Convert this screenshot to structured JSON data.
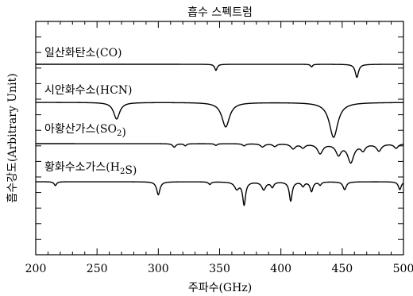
{
  "chart_data": {
    "type": "line",
    "title": "흡수 스펙트럼",
    "xlabel": "주파수(GHz)",
    "ylabel": "흡수강도(Arbitrary Unit)",
    "xlim": [
      200,
      500
    ],
    "xticks": [
      "200",
      "250",
      "300",
      "350",
      "400",
      "450",
      "500"
    ],
    "grid": false,
    "series": [
      {
        "name": "일산화탄소(CO)",
        "label_parts": [
          {
            "t": "일산화탄소(CO)"
          }
        ],
        "baseline": 0.0,
        "peaks": [
          {
            "x": 347,
            "depth": 0.35,
            "width": 1.2
          },
          {
            "x": 425,
            "depth": 0.15,
            "width": 1.0
          },
          {
            "x": 462,
            "depth": 0.75,
            "width": 1.6
          }
        ]
      },
      {
        "name": "시안화수소(HCN)",
        "label_parts": [
          {
            "t": "시안화수소(HCN)"
          }
        ],
        "baseline": 0.0,
        "peaks": [
          {
            "x": 266,
            "depth": 0.95,
            "width": 3.0
          },
          {
            "x": 355,
            "depth": 1.4,
            "width": 3.8
          },
          {
            "x": 443,
            "depth": 2.0,
            "width": 4.2
          }
        ]
      },
      {
        "name": "아황산가스(SO2)",
        "label_parts": [
          {
            "t": "아황산가스(SO"
          },
          {
            "t": "2",
            "sub": true
          },
          {
            "t": ")"
          }
        ],
        "baseline": 0.0,
        "peaks": [
          {
            "x": 313,
            "depth": 0.2,
            "width": 1.5
          },
          {
            "x": 322,
            "depth": 0.12,
            "width": 1.2
          },
          {
            "x": 347,
            "depth": 0.1,
            "width": 1.2
          },
          {
            "x": 370,
            "depth": 0.12,
            "width": 1.5
          },
          {
            "x": 385,
            "depth": 0.18,
            "width": 2.0
          },
          {
            "x": 395,
            "depth": 0.15,
            "width": 1.8
          },
          {
            "x": 410,
            "depth": 0.28,
            "width": 2.2
          },
          {
            "x": 418,
            "depth": 0.22,
            "width": 2.0
          },
          {
            "x": 432,
            "depth": 0.55,
            "width": 2.6
          },
          {
            "x": 447,
            "depth": 0.6,
            "width": 2.6
          },
          {
            "x": 457,
            "depth": 1.05,
            "width": 3.0
          },
          {
            "x": 467,
            "depth": 0.35,
            "width": 2.2
          },
          {
            "x": 480,
            "depth": 0.4,
            "width": 2.4
          },
          {
            "x": 494,
            "depth": 0.25,
            "width": 2.0
          }
        ]
      },
      {
        "name": "황화수소가스(H2S)",
        "label_parts": [
          {
            "t": "황화수소가스(H"
          },
          {
            "t": "2",
            "sub": true
          },
          {
            "t": "S)"
          }
        ],
        "baseline": 0.0,
        "peaks": [
          {
            "x": 216,
            "depth": 0.22,
            "width": 1.2
          },
          {
            "x": 300,
            "depth": 0.75,
            "width": 1.6
          },
          {
            "x": 342,
            "depth": 0.15,
            "width": 1.2
          },
          {
            "x": 364,
            "depth": 0.4,
            "width": 2.2
          },
          {
            "x": 370,
            "depth": 1.3,
            "width": 1.4
          },
          {
            "x": 386,
            "depth": 0.45,
            "width": 2.0
          },
          {
            "x": 393,
            "depth": 0.3,
            "width": 1.4
          },
          {
            "x": 408,
            "depth": 1.1,
            "width": 1.4
          },
          {
            "x": 418,
            "depth": 0.25,
            "width": 1.4
          },
          {
            "x": 425,
            "depth": 0.55,
            "width": 1.4
          },
          {
            "x": 432,
            "depth": 0.18,
            "width": 1.2
          },
          {
            "x": 452,
            "depth": 0.45,
            "width": 1.6
          },
          {
            "x": 497,
            "depth": 0.45,
            "width": 1.4
          }
        ]
      }
    ]
  }
}
